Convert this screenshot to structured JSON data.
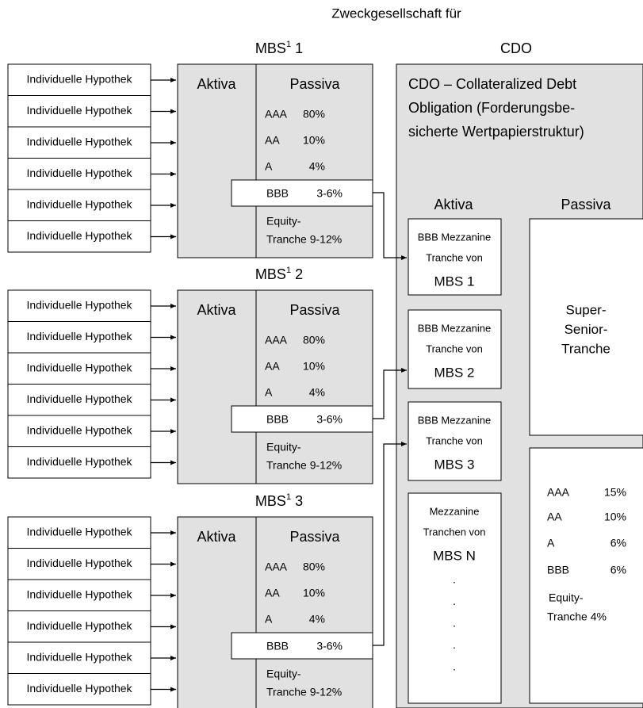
{
  "header": {
    "title": "Zweckgesellschaft für"
  },
  "mbs": [
    {
      "name": "MBS",
      "footnote": "1",
      "number": "1",
      "mortgages": [
        "Individuelle Hypothek",
        "Individuelle Hypothek",
        "Individuelle Hypothek",
        "Individuelle Hypothek",
        "Individuelle Hypothek",
        "Individuelle Hypothek"
      ],
      "aktiva": "Aktiva",
      "passiva": "Passiva",
      "tranches": [
        {
          "rating": "AAA",
          "share": "80%"
        },
        {
          "rating": "AA",
          "share": "10%"
        },
        {
          "rating": "A",
          "share": "4%"
        },
        {
          "rating": "BBB",
          "share": "3-6%"
        }
      ],
      "equity": [
        "Equity-",
        "Tranche 9-12%"
      ]
    },
    {
      "name": "MBS",
      "footnote": "1",
      "number": "2",
      "mortgages": [
        "Individuelle Hypothek",
        "Individuelle Hypothek",
        "Individuelle Hypothek",
        "Individuelle Hypothek",
        "Individuelle Hypothek",
        "Individuelle Hypothek"
      ],
      "aktiva": "Aktiva",
      "passiva": "Passiva",
      "tranches": [
        {
          "rating": "AAA",
          "share": "80%"
        },
        {
          "rating": "AA",
          "share": "10%"
        },
        {
          "rating": "A",
          "share": "4%"
        },
        {
          "rating": "BBB",
          "share": "3-6%"
        }
      ],
      "equity": [
        "Equity-",
        "Tranche 9-12%"
      ]
    },
    {
      "name": "MBS",
      "footnote": "1",
      "number": "3",
      "mortgages": [
        "Individuelle Hypothek",
        "Individuelle Hypothek",
        "Individuelle Hypothek",
        "Individuelle Hypothek",
        "Individuelle Hypothek",
        "Individuelle Hypothek"
      ],
      "aktiva": "Aktiva",
      "passiva": "Passiva",
      "tranches": [
        {
          "rating": "AAA",
          "share": "80%"
        },
        {
          "rating": "AA",
          "share": "10%"
        },
        {
          "rating": "A",
          "share": "4%"
        },
        {
          "rating": "BBB",
          "share": "3-6%"
        }
      ],
      "equity": [
        "Equity-",
        "Tranche 9-12%"
      ]
    }
  ],
  "cdo": {
    "title": "CDO",
    "description": [
      "CDO – Collateralized Debt",
      "Obligation (Forderungsbe-",
      "sicherte Wertpapierstruktur)"
    ],
    "aktiva": "Aktiva",
    "passiva": "Passiva",
    "assets": [
      {
        "lines": [
          "BBB Mezzanine",
          "Tranche von",
          "MBS 1"
        ]
      },
      {
        "lines": [
          "BBB Mezzanine",
          "Tranche von",
          "MBS 2"
        ]
      },
      {
        "lines": [
          "BBB Mezzanine",
          "Tranche von",
          "MBS 3"
        ]
      },
      {
        "lines": [
          "Mezzanine",
          "Tranchen von",
          "MBS N"
        ],
        "dots": [
          ".",
          ".",
          ".",
          ".",
          "."
        ]
      }
    ],
    "senior": [
      "Super-",
      "Senior-",
      "Tranche"
    ],
    "tranches": [
      {
        "rating": "AAA",
        "share": "15%"
      },
      {
        "rating": "AA",
        "share": "10%"
      },
      {
        "rating": "A",
        "share": "6%"
      },
      {
        "rating": "BBB",
        "share": "6%"
      }
    ],
    "equity": [
      "Equity-",
      "Tranche 4%"
    ]
  }
}
